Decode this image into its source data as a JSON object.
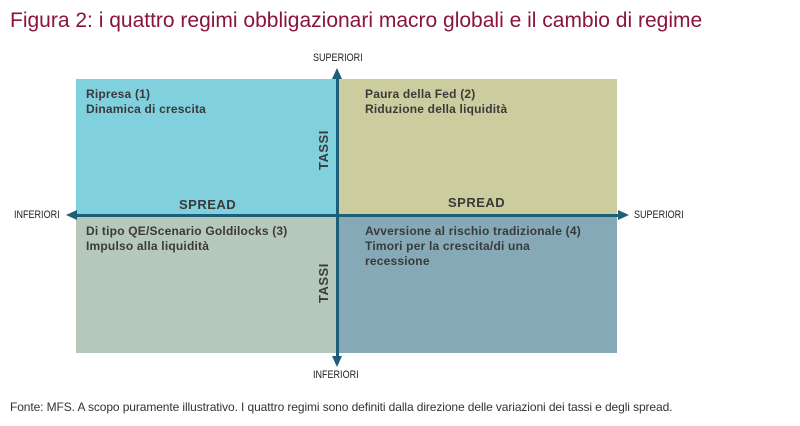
{
  "title": "Figura 2: i quattro regimi obbligazionari macro globali e il cambio di regime",
  "axes": {
    "top_label": "SUPERIORI",
    "bottom_label": "INFERIORI",
    "left_label": "INFERIORI",
    "right_label": "SUPERIORI",
    "horizontal_name": "SPREAD",
    "vertical_name": "TASSI"
  },
  "quadrants": {
    "top_left": {
      "lines": [
        "Ripresa (1)",
        "Dinamica di crescita"
      ],
      "color": "#80d0de"
    },
    "top_right": {
      "lines": [
        "Paura della Fed (2)",
        "Riduzione della liquidità"
      ],
      "color": "#cccd9e"
    },
    "bottom_left": {
      "lines": [
        "Di tipo QE/Scenario Goldilocks (3)",
        "Impulso alla liquidità"
      ],
      "color": "#b6c8b9"
    },
    "bottom_right": {
      "lines": [
        "Avversione al rischio tradizionale (4)",
        "Timori per la crescita/di una",
        "recessione"
      ],
      "color": "#85a9b6"
    }
  },
  "axis_color": "#1d5e78",
  "title_color": "#8a1538",
  "footer": "Fonte: MFS. A scopo puramente illustrativo. I quattro regimi sono definiti dalla direzione delle variazioni dei tassi e degli spread."
}
